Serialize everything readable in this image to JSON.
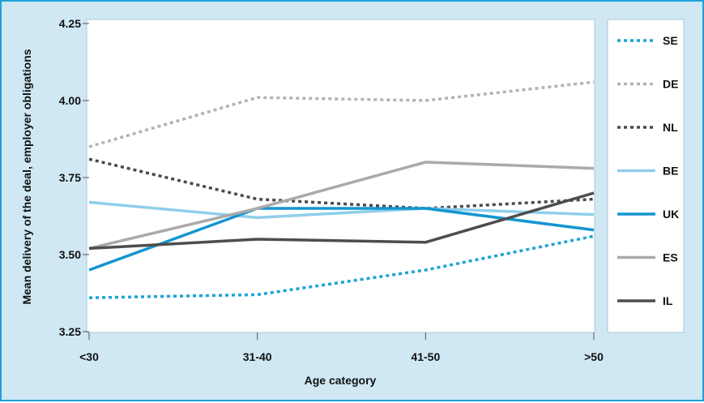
{
  "chart_data": {
    "type": "line",
    "title": "",
    "xlabel": "Age category",
    "ylabel": "Mean delivery of the deal, employer obligations",
    "categories": [
      "<30",
      "31-40",
      "41-50",
      ">50"
    ],
    "ylim": [
      3.25,
      4.25
    ],
    "yticks": [
      "3.25",
      "3.50",
      "3.75",
      "4.00",
      "4.25"
    ],
    "ytick_values": [
      3.25,
      3.5,
      3.75,
      4.0,
      4.25
    ],
    "grid": false,
    "legend_position": "right",
    "series": [
      {
        "name": "SE",
        "color": "#1da1d8",
        "dash": "dotted",
        "values": [
          3.36,
          3.37,
          3.45,
          3.56
        ]
      },
      {
        "name": "DE",
        "color": "#b3b3b3",
        "dash": "dotted",
        "values": [
          3.85,
          4.01,
          4.0,
          4.06
        ]
      },
      {
        "name": "NL",
        "color": "#4a4a4a",
        "dash": "dotted",
        "values": [
          3.81,
          3.68,
          3.65,
          3.68
        ]
      },
      {
        "name": "BE",
        "color": "#8fcfea",
        "dash": "solid",
        "values": [
          3.67,
          3.62,
          3.65,
          3.63
        ]
      },
      {
        "name": "UK",
        "color": "#1396cf",
        "dash": "solid",
        "values": [
          3.45,
          3.65,
          3.65,
          3.58
        ]
      },
      {
        "name": "ES",
        "color": "#aaaaaa",
        "dash": "solid",
        "values": [
          3.52,
          3.65,
          3.8,
          3.78
        ]
      },
      {
        "name": "IL",
        "color": "#4d4d4d",
        "dash": "solid",
        "values": [
          3.52,
          3.55,
          3.54,
          3.7
        ]
      }
    ]
  }
}
